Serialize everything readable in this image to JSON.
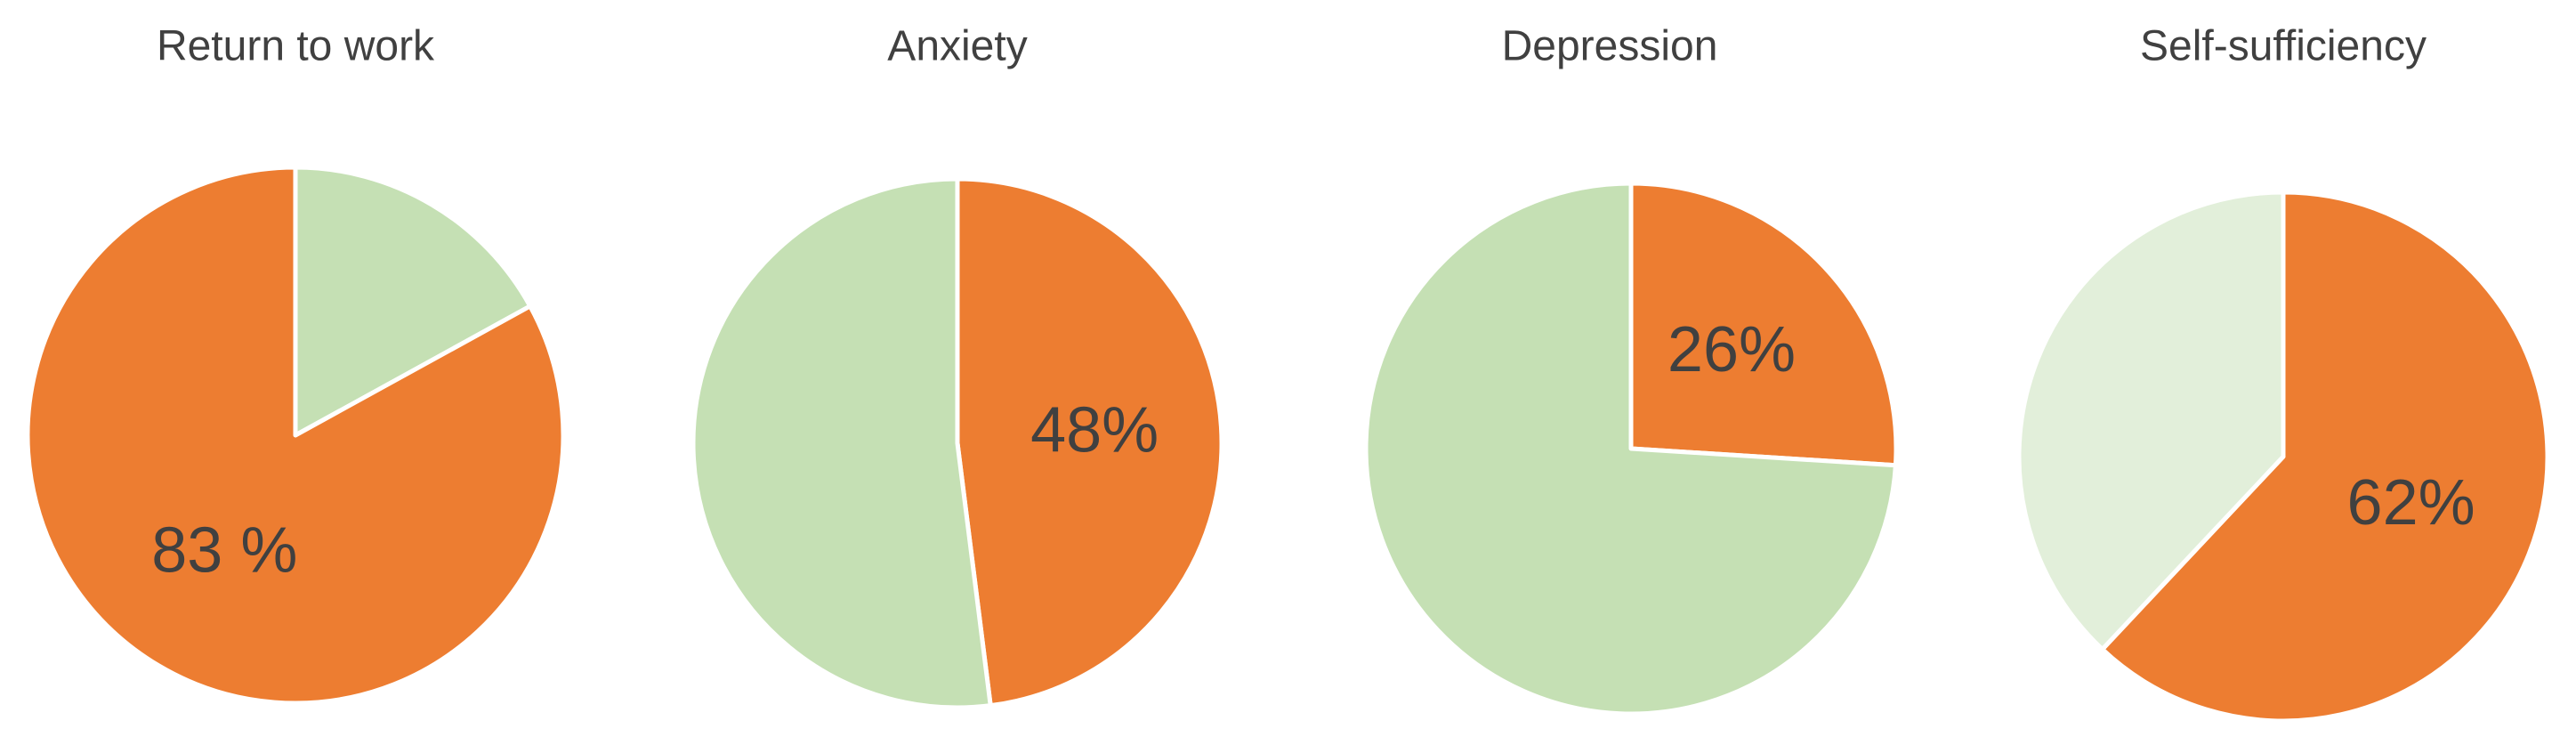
{
  "chart_data": [
    {
      "type": "pie",
      "title": "Return to work",
      "values": [
        17,
        83
      ],
      "value_labels": [
        null,
        "83 %"
      ],
      "colors": [
        "#C5E0B4",
        "#ED7D31"
      ]
    },
    {
      "type": "pie",
      "title": "Anxiety",
      "values": [
        48,
        52
      ],
      "value_labels": [
        "48%",
        null
      ],
      "colors": [
        "#ED7D31",
        "#C5E0B4"
      ]
    },
    {
      "type": "pie",
      "title": "Depression",
      "values": [
        26,
        74
      ],
      "value_labels": [
        "26%",
        null
      ],
      "colors": [
        "#ED7D31",
        "#C5E0B4"
      ]
    },
    {
      "type": "pie",
      "title": "Self-sufficiency",
      "values": [
        62,
        38
      ],
      "value_labels": [
        "62%",
        null
      ],
      "colors": [
        "#ED7D31",
        "#E2EFDA"
      ]
    }
  ]
}
